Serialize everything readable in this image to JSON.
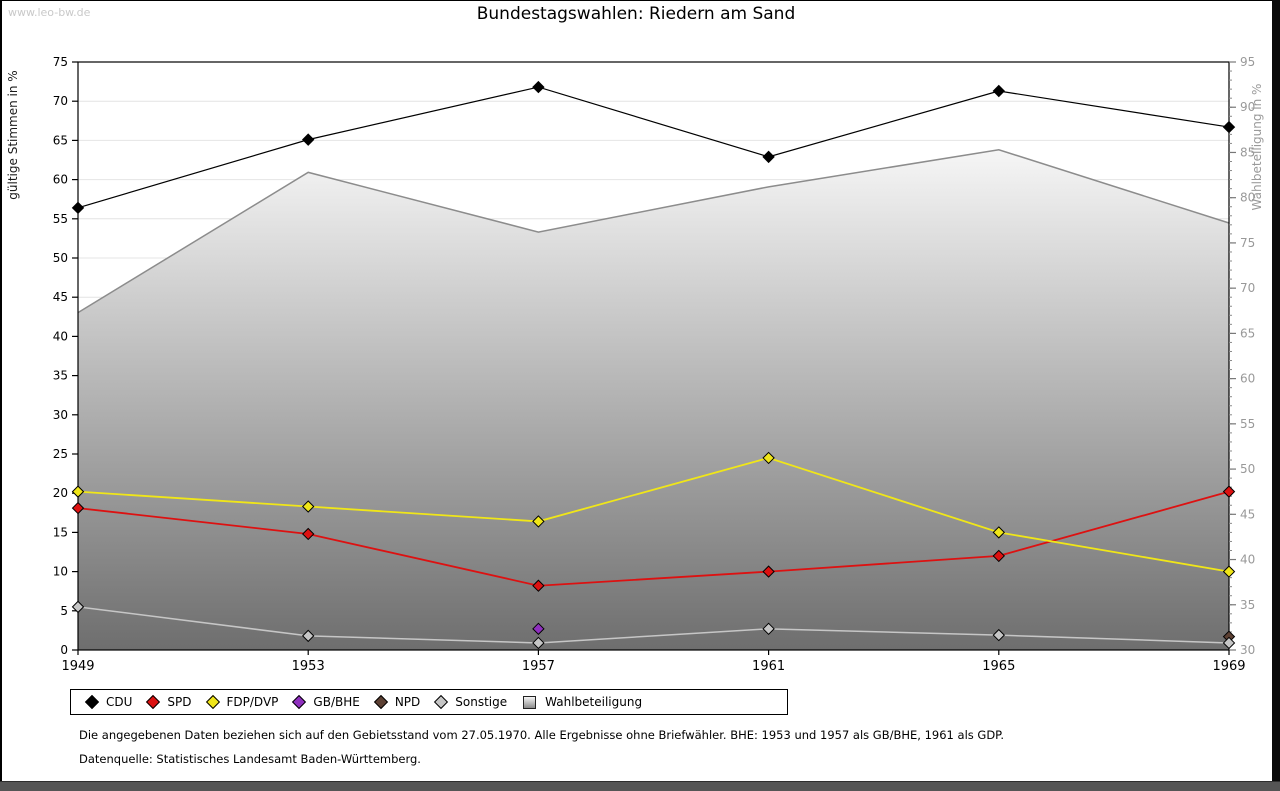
{
  "watermark": "www.leo-bw.de",
  "title": "Bundestagswahlen: Riedern am Sand",
  "chart_data": {
    "type": "line",
    "x": [
      1949,
      1953,
      1957,
      1961,
      1965,
      1969
    ],
    "left_axis": {
      "label": "gültige Stimmen in %",
      "min": 0,
      "max": 75,
      "tick_step": 5
    },
    "right_axis": {
      "label": "Wahlbeteiligung in %",
      "min": 30,
      "max": 95,
      "tick_step": 5,
      "minor_step": 1
    },
    "grid": "horizontal-on",
    "series": [
      {
        "name": "CDU",
        "color": "#000000",
        "axis": "left",
        "line_width": 1.2,
        "values": [
          56.4,
          65.1,
          71.8,
          62.9,
          71.3,
          66.7
        ]
      },
      {
        "name": "SPD",
        "color": "#dd1111",
        "axis": "left",
        "line_width": 1.8,
        "values": [
          18.1,
          14.8,
          8.2,
          10.0,
          12.0,
          20.2
        ]
      },
      {
        "name": "FDP/DVP",
        "color": "#f0e618",
        "axis": "left",
        "line_width": 1.8,
        "values": [
          20.2,
          18.3,
          16.4,
          24.5,
          15.0,
          10.0
        ]
      },
      {
        "name": "GB/BHE",
        "color": "#8f2fbf",
        "axis": "left",
        "line_width": 1.8,
        "values": [
          null,
          null,
          2.7,
          null,
          null,
          null
        ]
      },
      {
        "name": "NPD",
        "color": "#5c4033",
        "axis": "left",
        "line_width": 1.8,
        "values": [
          null,
          null,
          null,
          null,
          null,
          1.7
        ]
      },
      {
        "name": "Sonstige",
        "color": "#c6c6c6",
        "axis": "left",
        "line_width": 1.5,
        "values": [
          5.5,
          1.8,
          0.9,
          2.7,
          1.9,
          0.9
        ]
      }
    ],
    "area_series": {
      "name": "Wahlbeteiligung",
      "axis": "right",
      "values": [
        67.3,
        82.8,
        76.2,
        81.2,
        85.3,
        77.2
      ],
      "stroke": "#8c8c8c",
      "fill_top": "#f6f6f6",
      "fill_bottom": "#6e6e6e"
    },
    "colors": {
      "grid": "#e4e4e4",
      "axis_box": "#000000",
      "right_tick_text": "#999999",
      "left_tick_text": "#000000"
    }
  },
  "legend": {
    "items": [
      {
        "label": "CDU",
        "color": "#000000",
        "shape": "diamond"
      },
      {
        "label": "SPD",
        "color": "#dd1111",
        "shape": "diamond"
      },
      {
        "label": "FDP/DVP",
        "color": "#f0e618",
        "shape": "diamond"
      },
      {
        "label": "GB/BHE",
        "color": "#8f2fbf",
        "shape": "diamond"
      },
      {
        "label": "NPD",
        "color": "#5c4033",
        "shape": "diamond"
      },
      {
        "label": "Sonstige",
        "color": "#c6c6c6",
        "shape": "diamond"
      },
      {
        "label": "Wahlbeteiligung",
        "color": "#b9b9b9",
        "shape": "square"
      }
    ]
  },
  "footnote1": "Die angegebenen Daten beziehen sich auf den Gebietsstand vom 27.05.1970. Alle Ergebnisse ohne Briefwähler. BHE: 1953 und 1957 als GB/BHE, 1961 als GDP.",
  "footnote2": "Datenquelle: Statistisches Landesamt Baden-Württemberg."
}
